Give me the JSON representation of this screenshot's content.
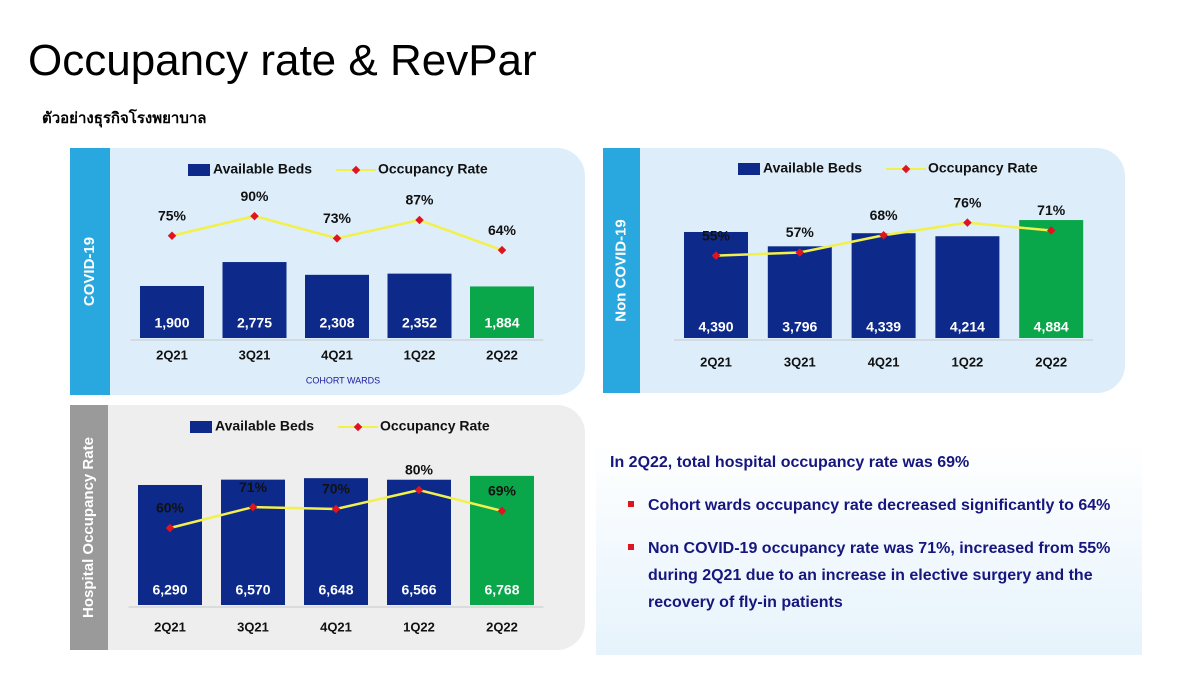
{
  "title": "Occupancy rate & RevPar",
  "subtitle": "ตัวอย่างธุรกิจโรงพยาบาล",
  "chart_data": [
    {
      "type": "combo",
      "side_label": "COVID-19",
      "annotation": "COHORT WARDS",
      "categories": [
        "2Q21",
        "3Q21",
        "4Q21",
        "1Q22",
        "2Q22"
      ],
      "series": [
        {
          "name": "Available Beds",
          "color": "#0d2a8a",
          "bar_colors": [
            "#0d2a8a",
            "#0d2a8a",
            "#0d2a8a",
            "#0d2a8a",
            "#0aa64a"
          ],
          "values": [
            1900,
            2775,
            2308,
            2352,
            1884
          ],
          "value_labels": [
            "1,900",
            "2,775",
            "2,308",
            "2,352",
            "1,884"
          ]
        },
        {
          "name": "Occupancy Rate",
          "color": "#f2f04a",
          "marker_color": "#e0141e",
          "values": [
            75,
            90,
            73,
            87,
            64
          ],
          "value_labels": [
            "75%",
            "90%",
            "73%",
            "87%",
            "64%"
          ]
        }
      ]
    },
    {
      "type": "combo",
      "side_label": "Non COVID-19",
      "categories": [
        "2Q21",
        "3Q21",
        "4Q21",
        "1Q22",
        "2Q22"
      ],
      "series": [
        {
          "name": "Available Beds",
          "color": "#0d2a8a",
          "bar_colors": [
            "#0d2a8a",
            "#0d2a8a",
            "#0d2a8a",
            "#0d2a8a",
            "#0aa64a"
          ],
          "values": [
            4390,
            3796,
            4339,
            4214,
            4884
          ],
          "value_labels": [
            "4,390",
            "3,796",
            "4,339",
            "4,214",
            "4,884"
          ]
        },
        {
          "name": "Occupancy Rate",
          "color": "#f2f04a",
          "marker_color": "#e0141e",
          "values": [
            55,
            57,
            68,
            76,
            71
          ],
          "value_labels": [
            "55%",
            "57%",
            "68%",
            "76%",
            "71%"
          ]
        }
      ]
    },
    {
      "type": "combo",
      "side_label": "Hospital Occupancy Rate",
      "categories": [
        "2Q21",
        "3Q21",
        "4Q21",
        "1Q22",
        "2Q22"
      ],
      "series": [
        {
          "name": "Available Beds",
          "color": "#0d2a8a",
          "bar_colors": [
            "#0d2a8a",
            "#0d2a8a",
            "#0d2a8a",
            "#0d2a8a",
            "#0aa64a"
          ],
          "values": [
            6290,
            6570,
            6648,
            6566,
            6768
          ],
          "value_labels": [
            "6,290",
            "6,570",
            "6,648",
            "6,566",
            "6,768"
          ]
        },
        {
          "name": "Occupancy Rate",
          "color": "#f2f04a",
          "marker_color": "#e0141e",
          "values": [
            60,
            71,
            70,
            80,
            69
          ],
          "value_labels": [
            "60%",
            "71%",
            "70%",
            "80%",
            "69%"
          ]
        }
      ]
    }
  ],
  "summary": {
    "headline": "In 2Q22, total hospital occupancy rate was 69%",
    "bullets": [
      "Cohort wards occupancy rate decreased significantly to 64%",
      "Non COVID-19 occupancy rate was 71%, increased from 55% during 2Q21 due to an increase in elective surgery and the recovery of fly-in patients"
    ]
  }
}
